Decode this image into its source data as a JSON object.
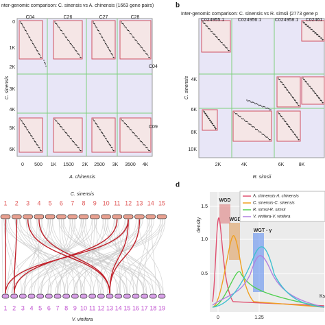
{
  "panel_a": {
    "title": "nter-genomic comparison: C. sinensis vs A. chinensis (1663 gene pairs)",
    "columns": [
      "C04",
      "C26",
      "C27",
      "C28"
    ],
    "rows": [
      "C04",
      "C09"
    ],
    "yticks": [
      "0",
      "1K",
      "2K",
      "3K",
      "4K",
      "5K",
      "6K"
    ],
    "xticks": [
      "0",
      "500",
      "1K",
      "1500",
      "2K",
      "2500",
      "3K",
      "3500",
      "4K"
    ],
    "xlabel": "A. chinensis",
    "ylabel": "C. sinensis"
  },
  "panel_b": {
    "letter": "b",
    "title": "Inter-genomic comparison: C. sinensis vs R. simsii (2773 gene p",
    "columns": [
      "C024955.1",
      "C024956.1",
      "C024958.1",
      "C02461"
    ],
    "yticks": [
      "4K",
      "6K",
      "8K",
      "10K"
    ],
    "xticks": [
      "2K",
      "4K",
      "6K",
      "8K"
    ],
    "xlabel": "R. simsii",
    "ylabel": "C. sinensis"
  },
  "panel_c": {
    "top_label": "C. sinensis",
    "top_numbers": [
      "1",
      "2",
      "3",
      "4",
      "5",
      "6",
      "7",
      "8",
      "9",
      "10",
      "11",
      "12",
      "13",
      "14",
      "15"
    ],
    "bottom_numbers": [
      "1",
      "2",
      "3",
      "4",
      "5",
      "6",
      "7",
      "8",
      "9",
      "10",
      "11",
      "12",
      "13",
      "14",
      "15",
      "16",
      "17",
      "18",
      "19"
    ],
    "bottom_label": "V. vinifera"
  },
  "panel_d": {
    "letter": "d",
    "ylabel": "density",
    "yticks": [
      "0.5",
      "1.0",
      "1.5"
    ],
    "xticks": [
      "0",
      "1.25"
    ],
    "xlabel": "Ks",
    "annotations": [
      "WGD",
      "WGD",
      "WGT - γ"
    ],
    "legend": [
      "A. chinensis-A. chinensis",
      "C. sinensis-C. sinensis",
      "R. simsii-R. simsii",
      "V. vinifera-V. vinifera"
    ]
  }
}
